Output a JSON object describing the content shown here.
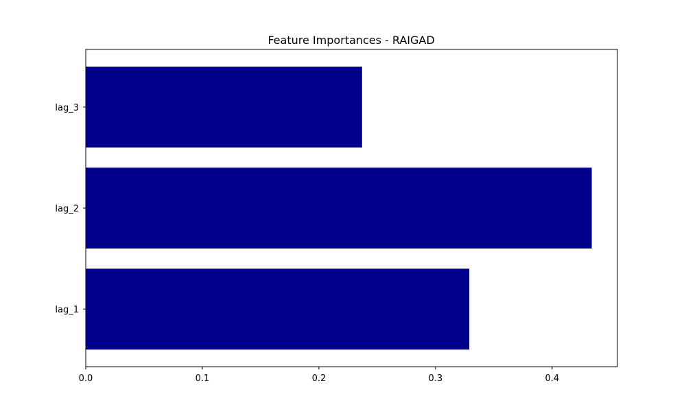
{
  "chart_data": {
    "type": "bar",
    "orientation": "horizontal",
    "title": "Feature Importances - RAIGAD",
    "xlabel": "",
    "ylabel": "",
    "categories": [
      "lag_1",
      "lag_2",
      "lag_3"
    ],
    "values": [
      0.329,
      0.434,
      0.237
    ],
    "xlim": [
      0,
      0.456
    ],
    "xticks": [
      0.0,
      0.1,
      0.2,
      0.3,
      0.4
    ],
    "xtick_labels": [
      "0.0",
      "0.1",
      "0.2",
      "0.3",
      "0.4"
    ],
    "grid": false,
    "legend": "none",
    "bar_color": "#00008b"
  }
}
